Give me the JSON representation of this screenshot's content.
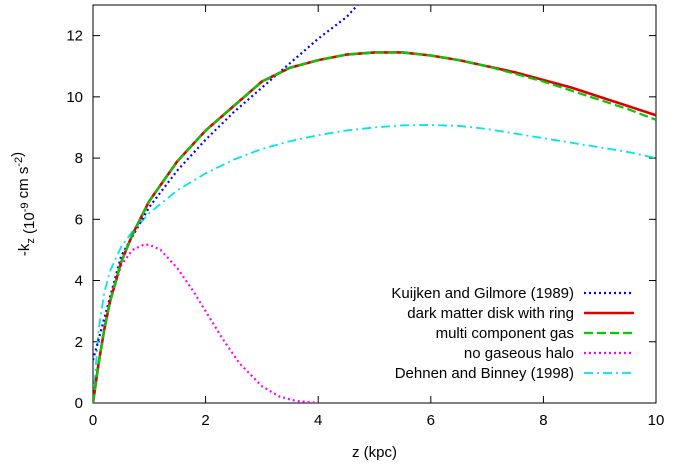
{
  "chart_data": {
    "type": "line",
    "xlabel": "z (kpc)",
    "ylabel": {
      "parts": [
        {
          "text": "-k",
          "shift": "none"
        },
        {
          "text": "z",
          "shift": "sub"
        },
        {
          "text": " (10",
          "shift": "none"
        },
        {
          "text": "-9",
          "shift": "super"
        },
        {
          "text": " cm s",
          "shift": "none"
        },
        {
          "text": "-2",
          "shift": "super"
        },
        {
          "text": ")",
          "shift": "none"
        }
      ]
    },
    "xlim": [
      0,
      10
    ],
    "ylim": [
      0,
      13
    ],
    "xticks": [
      0,
      2,
      4,
      6,
      8,
      10
    ],
    "yticks": [
      0,
      2,
      4,
      6,
      8,
      10,
      12
    ],
    "grid": false,
    "legend_position": "bottom-right",
    "series": [
      {
        "name": "Kuijken and Gilmore (1989)",
        "color": "#0000ff",
        "style": "dotted",
        "x": [
          0,
          0.5,
          1.0,
          1.5,
          2.0,
          2.5,
          3.0,
          3.5,
          4.0,
          4.5,
          4.7
        ],
        "y": [
          1.4,
          4.8,
          6.4,
          7.6,
          8.6,
          9.5,
          10.3,
          11.1,
          11.9,
          12.6,
          13.0
        ]
      },
      {
        "name": "dark matter disk with ring",
        "color": "#dd0000",
        "style": "solid",
        "x": [
          0,
          0.1,
          0.2,
          0.3,
          0.5,
          0.7,
          1.0,
          1.5,
          2.0,
          2.5,
          3.0,
          3.5,
          4.0,
          4.5,
          5.0,
          5.5,
          6.0,
          6.5,
          7.0,
          7.5,
          8.0,
          8.5,
          9.0,
          9.5,
          10.0
        ],
        "y": [
          0,
          1.3,
          2.4,
          3.3,
          4.6,
          5.5,
          6.6,
          7.9,
          8.9,
          9.7,
          10.5,
          10.95,
          11.2,
          11.38,
          11.45,
          11.45,
          11.35,
          11.2,
          11.0,
          10.8,
          10.55,
          10.3,
          10.0,
          9.7,
          9.4
        ]
      },
      {
        "name": "multi component gas",
        "color": "#00cc00",
        "style": "dashed",
        "x": [
          0,
          0.1,
          0.2,
          0.3,
          0.5,
          0.7,
          1.0,
          1.5,
          2.0,
          2.5,
          3.0,
          3.5,
          4.0,
          4.5,
          5.0,
          5.5,
          6.0,
          6.5,
          7.0,
          7.5,
          8.0,
          8.5,
          9.0,
          9.5,
          10.0
        ],
        "y": [
          0,
          1.3,
          2.4,
          3.3,
          4.6,
          5.5,
          6.6,
          7.9,
          8.9,
          9.7,
          10.5,
          10.95,
          11.2,
          11.38,
          11.45,
          11.45,
          11.35,
          11.2,
          11.0,
          10.75,
          10.5,
          10.2,
          9.9,
          9.6,
          9.25
        ]
      },
      {
        "name": "no gaseous halo",
        "color": "#ff00ff",
        "style": "dotted",
        "x": [
          0,
          0.1,
          0.2,
          0.3,
          0.5,
          0.7,
          0.9,
          1.0,
          1.2,
          1.5,
          1.8,
          2.0,
          2.3,
          2.6,
          3.0,
          3.3,
          3.6,
          4.0
        ],
        "y": [
          0,
          1.3,
          2.4,
          3.3,
          4.5,
          5.0,
          5.17,
          5.17,
          5.0,
          4.4,
          3.6,
          3.0,
          2.1,
          1.3,
          0.55,
          0.22,
          0.07,
          0.0
        ]
      },
      {
        "name": "Dehnen and Binney (1998)",
        "color": "#00e5e5",
        "style": "dashdot",
        "x": [
          0,
          0.1,
          0.2,
          0.3,
          0.5,
          0.7,
          1.0,
          1.5,
          2.0,
          2.5,
          3.0,
          3.5,
          4.0,
          4.5,
          5.0,
          5.5,
          6.0,
          6.5,
          7.0,
          7.5,
          8.0,
          8.5,
          9.0,
          9.5,
          10.0
        ],
        "y": [
          0,
          2.4,
          3.6,
          4.3,
          5.1,
          5.6,
          6.2,
          6.95,
          7.5,
          7.95,
          8.3,
          8.55,
          8.75,
          8.9,
          9.0,
          9.07,
          9.08,
          9.05,
          8.95,
          8.8,
          8.65,
          8.5,
          8.35,
          8.2,
          8.0
        ]
      }
    ]
  }
}
